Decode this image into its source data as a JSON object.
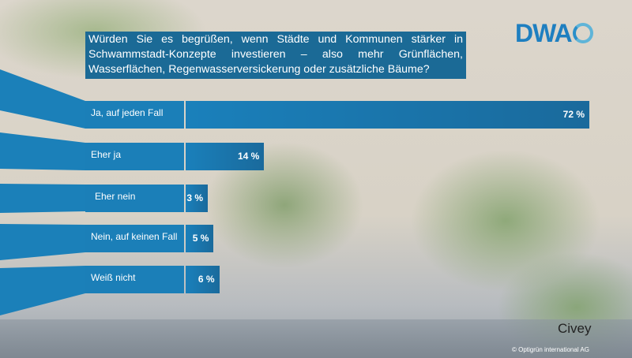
{
  "question": "Würden Sie es begrüßen, wenn Städte und Kommunen stärker in Schwammstadt-Konzepte investieren – also mehr Grünflächen, Wasserflächen, Regenwasserversickerung oder zusätzliche Bäume?",
  "logo": "DWA",
  "source": "Civey",
  "copyright": "© Optigrün international AG",
  "colors": {
    "bar": "#1b7fb8",
    "bar_dark": "#1a6a9c",
    "question_bg": "#1b6a96"
  },
  "chart_data": {
    "type": "bar",
    "orientation": "horizontal",
    "title": "Würden Sie es begrüßen, wenn Städte und Kommunen stärker in Schwammstadt-Konzepte investieren – also mehr Grünflächen, Wasserflächen, Regenwasserversickerung oder zusätzliche Bäume?",
    "categories": [
      "Ja, auf jeden Fall",
      "Eher ja",
      "Eher nein",
      "Nein, auf keinen Fall",
      "Weiß nicht"
    ],
    "values": [
      72,
      14,
      3,
      5,
      6
    ],
    "labels": [
      "72 %",
      "14 %",
      "3 %",
      "5 %",
      "6 %"
    ],
    "unit": "%",
    "xlim": [
      0,
      72
    ]
  }
}
